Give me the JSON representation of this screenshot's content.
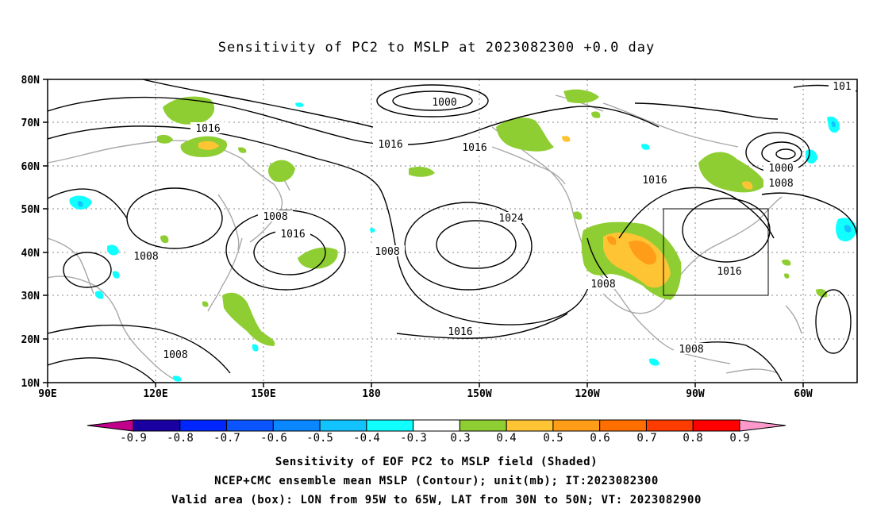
{
  "title": "Sensitivity of PC2 to MSLP at 2023082300 +0.0 day",
  "map": {
    "lon_labels": [
      "90E",
      "120E",
      "150E",
      "180",
      "150W",
      "120W",
      "90W",
      "60W"
    ],
    "lat_labels": [
      "80N",
      "70N",
      "60N",
      "50N",
      "40N",
      "30N",
      "20N",
      "10N"
    ],
    "contour_labels": [
      "1000",
      "1016",
      "1016",
      "1016",
      "1008",
      "1016",
      "1008",
      "1008",
      "1024",
      "1000",
      "1008",
      "1016",
      "1016",
      "1008",
      "1008",
      "1008",
      "1016",
      "101"
    ],
    "valid_box": {
      "lon_from": "95W",
      "lon_to": "65W",
      "lat_from": "30N",
      "lat_to": "50N"
    }
  },
  "colorbar": {
    "labels": [
      "-0.9",
      "-0.8",
      "-0.7",
      "-0.6",
      "-0.5",
      "-0.4",
      "-0.3",
      "0.3",
      "0.4",
      "0.5",
      "0.6",
      "0.7",
      "0.8",
      "0.9"
    ],
    "colors": [
      "#1a00a0",
      "#0026ff",
      "#0a55ff",
      "#0a86ff",
      "#12c3ff",
      "#10ffff",
      "#ffffff",
      "#8fce32",
      "#ffc434",
      "#ff9c18",
      "#ff6e00",
      "#ff3c00",
      "#ff0000"
    ],
    "low_end_color": "#c0008a",
    "high_end_color": "#ff99cc"
  },
  "captions": {
    "line1": "Sensitivity of EOF PC2 to MSLP field (Shaded)",
    "line2": "NCEP+CMC ensemble mean MSLP (Contour); unit(mb); IT:2023082300",
    "line3": "Valid area (box): LON from 95W to 65W, LAT from 30N to 50N; VT: 2023082900"
  }
}
